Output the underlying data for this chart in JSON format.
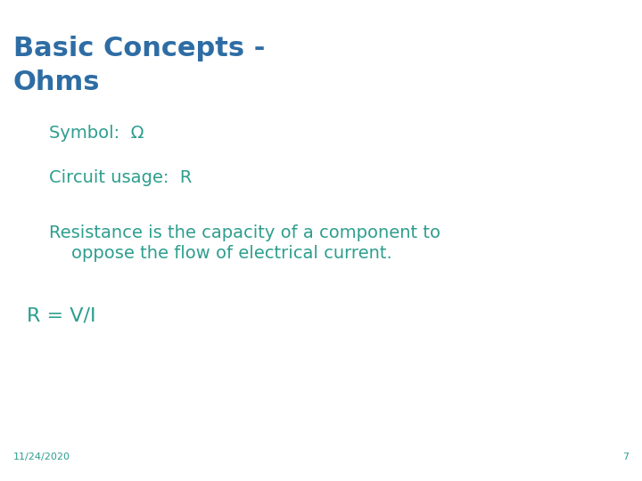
{
  "title_line1": "Basic Concepts -",
  "title_line2": "Ohms",
  "title_color": "#2E6DA4",
  "title_fontsize": 22,
  "body_color": "#2E9E8E",
  "body_fontsize": 14,
  "symbol_text": "Symbol:  Ω",
  "circuit_text": "Circuit usage:  R",
  "resistance_line1": "Resistance is the capacity of a component to",
  "resistance_line2": "    oppose the flow of electrical current.",
  "formula_text": "R = V/I",
  "formula_fontsize": 16,
  "footer_date": "11/24/2020",
  "footer_page": "7",
  "footer_fontsize": 8,
  "background_color": "#FFFFFF"
}
